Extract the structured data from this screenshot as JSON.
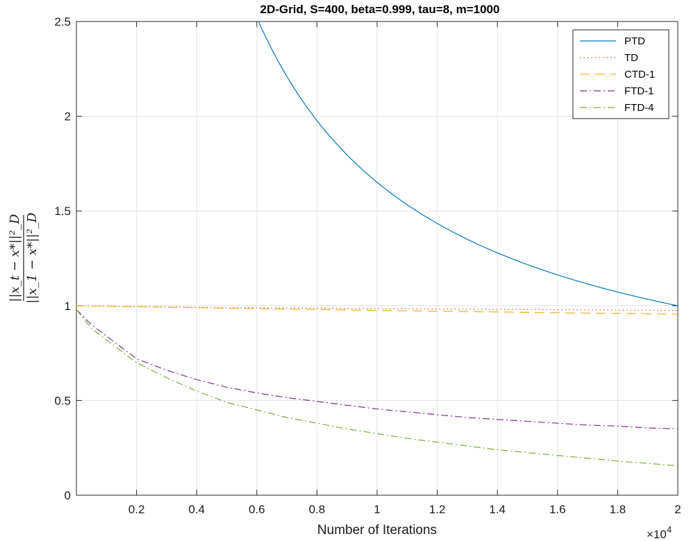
{
  "chart_data": {
    "type": "line",
    "title": "2D-Grid, S=400, beta=0.999, tau=8, m=1000",
    "xlabel": "Number of Iterations",
    "ylabel": "||x_t - x^*||_D^2 / ||x_1 - x^*||_D^2",
    "ylabel_top": "||x_t − x*||²_D",
    "ylabel_bottom": "||x_1 − x*||²_D",
    "x_multiplier_label": "×10",
    "x_multiplier_exp": "4",
    "xlim": [
      0,
      20000
    ],
    "ylim": [
      0,
      2.5
    ],
    "grid": true,
    "legend_position": "top-right",
    "xticks": [
      2000,
      4000,
      6000,
      8000,
      10000,
      12000,
      14000,
      16000,
      18000,
      20000
    ],
    "xtick_labels": [
      "0.2",
      "0.4",
      "0.6",
      "0.8",
      "1",
      "1.2",
      "1.4",
      "1.6",
      "1.8",
      "2"
    ],
    "yticks": [
      0,
      0.5,
      1,
      1.5,
      2,
      2.5
    ],
    "ytick_labels": [
      "0",
      "0.5",
      "1",
      "1.5",
      "2",
      "2.5"
    ],
    "series": [
      {
        "name": "PTD",
        "color": "#0072BD",
        "dash": "solid",
        "x": [
          6000,
          7000,
          8000,
          9000,
          10000,
          11000,
          12000,
          13000,
          14000,
          15000,
          16000,
          17000,
          18000,
          19000,
          20000
        ],
        "values": [
          2.52,
          2.15,
          1.9,
          1.72,
          1.59,
          1.47,
          1.38,
          1.3,
          1.24,
          1.18,
          1.14,
          1.1,
          1.06,
          1.03,
          1.0
        ]
      },
      {
        "name": "TD",
        "color": "#D95319",
        "dash": "dotted",
        "x": [
          0,
          5000,
          10000,
          15000,
          20000
        ],
        "values": [
          1.0,
          0.99,
          0.985,
          0.98,
          0.975
        ]
      },
      {
        "name": "CTD-1",
        "color": "#EDB120",
        "dash": "dashed",
        "x": [
          0,
          5000,
          10000,
          15000,
          20000
        ],
        "values": [
          1.0,
          0.987,
          0.975,
          0.965,
          0.955
        ]
      },
      {
        "name": "FTD-1",
        "color": "#7E2F8E",
        "dash": "dashdot",
        "x": [
          0,
          500,
          1000,
          2000,
          3000,
          4000,
          5000,
          6000,
          7000,
          8000,
          9000,
          10000,
          11000,
          12000,
          13000,
          14000,
          15000,
          16000,
          17000,
          18000,
          19000,
          20000
        ],
        "values": [
          0.98,
          0.9,
          0.84,
          0.72,
          0.66,
          0.61,
          0.57,
          0.54,
          0.515,
          0.495,
          0.475,
          0.455,
          0.44,
          0.425,
          0.41,
          0.4,
          0.39,
          0.38,
          0.37,
          0.365,
          0.355,
          0.35
        ]
      },
      {
        "name": "FTD-4",
        "color": "#77AC30",
        "dash": "dashdot",
        "x": [
          0,
          500,
          1000,
          2000,
          3000,
          4000,
          5000,
          6000,
          7000,
          8000,
          9000,
          10000,
          11000,
          12000,
          13000,
          14000,
          15000,
          16000,
          17000,
          18000,
          19000,
          20000
        ],
        "values": [
          0.98,
          0.88,
          0.82,
          0.7,
          0.62,
          0.55,
          0.49,
          0.45,
          0.41,
          0.38,
          0.35,
          0.325,
          0.3,
          0.28,
          0.26,
          0.24,
          0.225,
          0.21,
          0.195,
          0.18,
          0.168,
          0.155
        ]
      }
    ]
  }
}
